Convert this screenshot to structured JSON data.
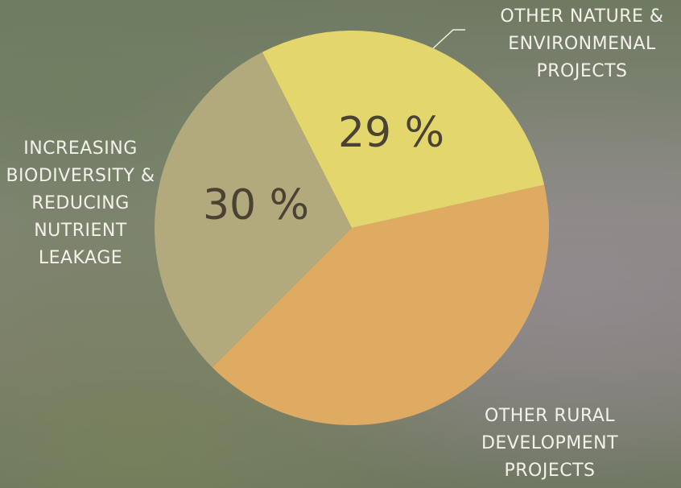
{
  "chart_data": {
    "type": "pie",
    "categories": [
      "OTHER NATURE & ENVIRONMENAL PROJECTS",
      "OTHER RURAL DEVELOPMENT PROJECTS",
      "INCREASING BIODIVERSITY & REDUCING NUTRIENT LEAKAGE"
    ],
    "values": [
      29,
      41,
      30
    ],
    "value_labels": [
      "29 %",
      null,
      "30 %"
    ],
    "colors": [
      "#e2d66c",
      "#dfab62",
      "#b2aa7c"
    ]
  }
}
